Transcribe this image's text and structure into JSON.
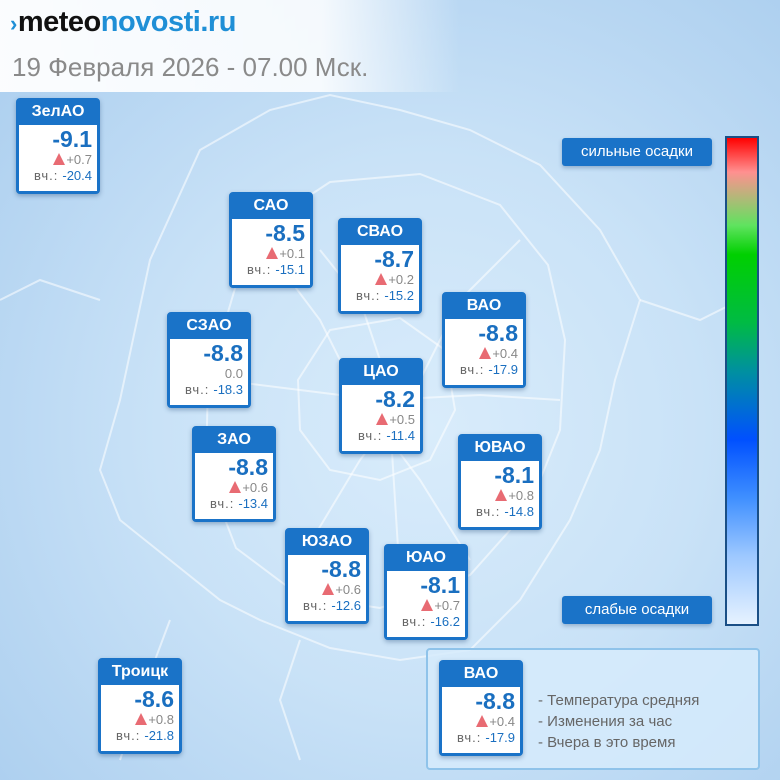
{
  "header": {
    "logo": {
      "mark": "›",
      "meteo": "meteo",
      "novosti": "novosti",
      "ru": ".ru"
    },
    "datetime": "19 Февраля 2026 - 07.00 Мск."
  },
  "colors": {
    "card_blue": "#1a73c8",
    "temp_blue": "#1a6fc0",
    "triangle_red": "#e86b73"
  },
  "districts": [
    {
      "id": "zelao",
      "name": "ЗелАО",
      "temp": "-9.1",
      "change": "+0.7",
      "up": true,
      "yesterday_label": "вч.:",
      "yesterday": "-20.4"
    },
    {
      "id": "sao",
      "name": "САО",
      "temp": "-8.5",
      "change": "+0.1",
      "up": true,
      "yesterday_label": "вч.:",
      "yesterday": "-15.1"
    },
    {
      "id": "svao",
      "name": "СВАО",
      "temp": "-8.7",
      "change": "+0.2",
      "up": true,
      "yesterday_label": "вч.:",
      "yesterday": "-15.2"
    },
    {
      "id": "szao",
      "name": "СЗАО",
      "temp": "-8.8",
      "change": "0.0",
      "up": false,
      "yesterday_label": "вч.:",
      "yesterday": "-18.3"
    },
    {
      "id": "vao",
      "name": "ВАО",
      "temp": "-8.8",
      "change": "+0.4",
      "up": true,
      "yesterday_label": "вч.:",
      "yesterday": "-17.9"
    },
    {
      "id": "cao",
      "name": "ЦАО",
      "temp": "-8.2",
      "change": "+0.5",
      "up": true,
      "yesterday_label": "вч.:",
      "yesterday": "-11.4"
    },
    {
      "id": "zao",
      "name": "ЗАО",
      "temp": "-8.8",
      "change": "+0.6",
      "up": true,
      "yesterday_label": "вч.:",
      "yesterday": "-13.4"
    },
    {
      "id": "yuvao",
      "name": "ЮВАО",
      "temp": "-8.1",
      "change": "+0.8",
      "up": true,
      "yesterday_label": "вч.:",
      "yesterday": "-14.8"
    },
    {
      "id": "yuzao",
      "name": "ЮЗАО",
      "temp": "-8.8",
      "change": "+0.6",
      "up": true,
      "yesterday_label": "вч.:",
      "yesterday": "-12.6"
    },
    {
      "id": "yuao",
      "name": "ЮАО",
      "temp": "-8.1",
      "change": "+0.7",
      "up": true,
      "yesterday_label": "вч.:",
      "yesterday": "-16.2"
    },
    {
      "id": "troitsk",
      "name": "Троицк",
      "temp": "-8.6",
      "change": "+0.8",
      "up": true,
      "yesterday_label": "вч.:",
      "yesterday": "-21.8"
    }
  ],
  "precip_scale": {
    "strong": "сильные осадки",
    "weak": "слабые осадки"
  },
  "legend": {
    "sample": {
      "name": "ВАО",
      "temp": "-8.8",
      "change": "+0.4",
      "up": true,
      "yesterday_label": "вч.:",
      "yesterday": "-17.9"
    },
    "items": [
      "- Температура средняя",
      "- Изменения за час",
      "- Вчера в это время"
    ]
  }
}
